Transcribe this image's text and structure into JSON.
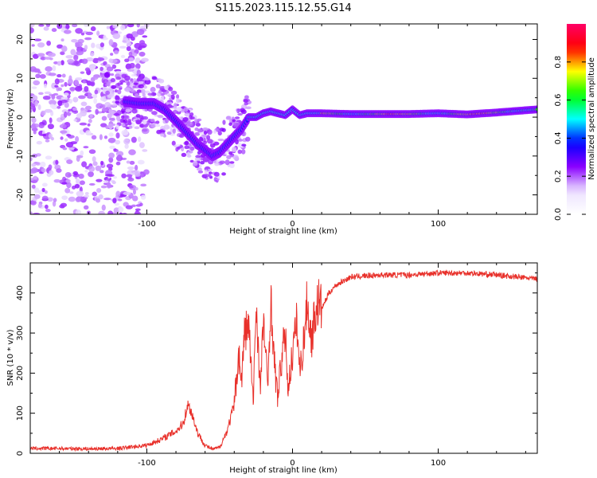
{
  "title": "S115.2023.115.12.55.G14",
  "chart_data": [
    {
      "type": "heatmap",
      "xlabel": "Height of straight line (km)",
      "ylabel": "Frequency (Hz)",
      "xlim": [
        -180,
        168
      ],
      "ylim": [
        -25,
        24
      ],
      "x_ticks": [
        -100,
        0,
        100
      ],
      "x_tick_labels": [
        "-100",
        "0",
        "100"
      ],
      "y_ticks": [
        -20,
        -10,
        0,
        10,
        20
      ],
      "y_tick_labels": [
        "-20",
        "-10",
        "0",
        "10",
        "20"
      ],
      "grid": false,
      "ridge": {
        "x": [
          -115,
          -105,
          -95,
          -88,
          -80,
          -75,
          -70,
          -65,
          -60,
          -55,
          -50,
          -45,
          -40,
          -35,
          -30,
          -25,
          -20,
          -15,
          -10,
          -5,
          0,
          5,
          10,
          20,
          40,
          60,
          80,
          100,
          120,
          140,
          168
        ],
        "frequency": [
          4,
          3.5,
          3.5,
          2,
          -1,
          -3,
          -5,
          -7,
          -8.5,
          -10,
          -9,
          -7,
          -5,
          -3,
          0,
          0,
          1,
          1.5,
          1,
          0.5,
          2,
          0.5,
          1,
          1,
          0.8,
          0.8,
          0.8,
          1,
          0.7,
          1.2,
          2
        ]
      },
      "colorbar": {
        "label": "Normalized spectral amplitude",
        "ticks": [
          0.0,
          0.2,
          0.4,
          0.6,
          0.8
        ],
        "tick_labels": [
          "0.0",
          "0.2",
          "0.4",
          "0.6",
          "0.8"
        ],
        "range": [
          0,
          1
        ],
        "colors": [
          "#ffffff",
          "#ece1ff",
          "#8a00ff",
          "#0000ff",
          "#00ffff",
          "#00ff00",
          "#ffff00",
          "#ff0000",
          "#ff0066"
        ]
      }
    },
    {
      "type": "line",
      "xlabel": "Height of straight line (km)",
      "ylabel": "SNR (10 * v/v)",
      "xlim": [
        -180,
        168
      ],
      "ylim": [
        0,
        475
      ],
      "x_ticks": [
        -100,
        0,
        100
      ],
      "x_tick_labels": [
        "-100",
        "0",
        "100"
      ],
      "y_ticks": [
        0,
        100,
        200,
        300,
        400
      ],
      "y_tick_labels": [
        "0",
        "100",
        "200",
        "300",
        "400"
      ],
      "grid": false,
      "series": [
        {
          "color": "#e8302a",
          "x": [
            -180,
            -160,
            -140,
            -120,
            -100,
            -90,
            -80,
            -75,
            -72,
            -70,
            -65,
            -60,
            -55,
            -50,
            -45,
            -40,
            -37,
            -35,
            -33,
            -30,
            -27,
            -25,
            -22,
            -20,
            -17,
            -15,
            -12,
            -10,
            -8,
            -5,
            -3,
            0,
            3,
            5,
            8,
            10,
            13,
            15,
            18,
            20,
            25,
            30,
            35,
            40,
            60,
            80,
            100,
            120,
            140,
            168
          ],
          "y": [
            12,
            12,
            11,
            12,
            20,
            35,
            55,
            75,
            120,
            110,
            50,
            20,
            10,
            15,
            55,
            120,
            250,
            180,
            300,
            320,
            120,
            380,
            150,
            340,
            160,
            390,
            200,
            140,
            220,
            300,
            160,
            250,
            330,
            200,
            290,
            380,
            280,
            340,
            380,
            360,
            400,
            420,
            430,
            440,
            445,
            445,
            450,
            450,
            445,
            435
          ]
        }
      ]
    }
  ]
}
